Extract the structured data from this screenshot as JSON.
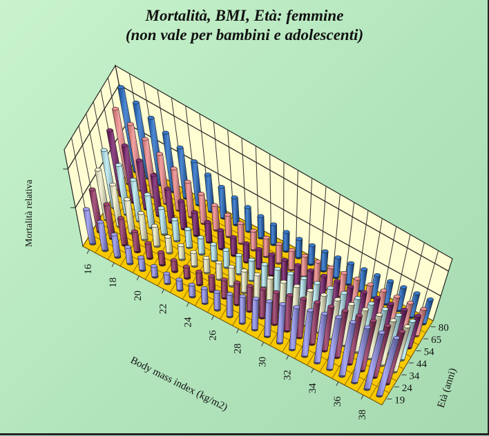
{
  "chart_data": {
    "type": "bar3d",
    "title": "Mortalità, BMI, Età: femmine",
    "subtitle": "(non vale per bambini e adolescenti)",
    "xlabel": "Body mass index (kg/m2)",
    "ylabel": "Età (anni)",
    "zlabel": "Mortalità relativa",
    "x": [
      16,
      17,
      18,
      19,
      20,
      21,
      22,
      23,
      24,
      25,
      26,
      27,
      28,
      29,
      30,
      31,
      32,
      33,
      34,
      35,
      36,
      37,
      38,
      39
    ],
    "x_tick_labels": [
      "16",
      "18",
      "20",
      "22",
      "24",
      "26",
      "28",
      "30",
      "32",
      "34",
      "36",
      "38"
    ],
    "zlim": [
      0,
      2.5
    ],
    "grid": true,
    "series": [
      {
        "name": "19",
        "color": "#8c8cf0",
        "values": [
          0.9,
          0.75,
          0.6,
          0.45,
          0.35,
          0.3,
          0.28,
          0.3,
          0.35,
          0.45,
          0.55,
          0.7,
          0.85,
          1.0,
          1.15,
          1.3,
          1.45,
          1.6,
          1.75,
          1.9,
          2.0,
          2.1,
          2.2,
          2.3
        ]
      },
      {
        "name": "24",
        "color": "#8e2456",
        "values": [
          1.1,
          0.9,
          0.72,
          0.55,
          0.42,
          0.35,
          0.32,
          0.33,
          0.38,
          0.46,
          0.56,
          0.68,
          0.8,
          0.93,
          1.06,
          1.2,
          1.33,
          1.46,
          1.58,
          1.7,
          1.8,
          1.9,
          2.0,
          2.08
        ]
      },
      {
        "name": "34",
        "color": "#f0efc6",
        "values": [
          1.3,
          1.1,
          0.9,
          0.72,
          0.56,
          0.45,
          0.4,
          0.4,
          0.43,
          0.5,
          0.58,
          0.68,
          0.78,
          0.9,
          1.0,
          1.1,
          1.2,
          1.3,
          1.4,
          1.5,
          1.58,
          1.66,
          1.74,
          1.8
        ]
      },
      {
        "name": "44",
        "color": "#b2e8f2",
        "values": [
          1.5,
          1.3,
          1.1,
          0.9,
          0.72,
          0.6,
          0.52,
          0.48,
          0.48,
          0.52,
          0.57,
          0.64,
          0.72,
          0.8,
          0.88,
          0.96,
          1.04,
          1.12,
          1.2,
          1.28,
          1.35,
          1.42,
          1.48,
          1.54
        ]
      },
      {
        "name": "54",
        "color": "#6a0a5c",
        "values": [
          1.7,
          1.5,
          1.3,
          1.1,
          0.92,
          0.78,
          0.66,
          0.58,
          0.54,
          0.54,
          0.56,
          0.6,
          0.65,
          0.7,
          0.76,
          0.82,
          0.88,
          0.94,
          1.0,
          1.06,
          1.12,
          1.17,
          1.22,
          1.27
        ]
      },
      {
        "name": "65",
        "color": "#f08282",
        "values": [
          1.95,
          1.75,
          1.55,
          1.35,
          1.15,
          0.98,
          0.84,
          0.72,
          0.64,
          0.6,
          0.58,
          0.58,
          0.6,
          0.63,
          0.67,
          0.71,
          0.75,
          0.8,
          0.85,
          0.9,
          0.94,
          0.98,
          1.02,
          1.06
        ]
      },
      {
        "name": "80",
        "color": "#1462c4",
        "values": [
          2.2,
          2.0,
          1.8,
          1.6,
          1.4,
          1.22,
          1.05,
          0.9,
          0.8,
          0.72,
          0.66,
          0.62,
          0.6,
          0.6,
          0.62,
          0.65,
          0.68,
          0.72,
          0.76,
          0.8,
          0.84,
          0.88,
          0.92,
          0.96
        ]
      }
    ],
    "floor_color": "#f8c800",
    "wall_color": "#fffdd2"
  }
}
